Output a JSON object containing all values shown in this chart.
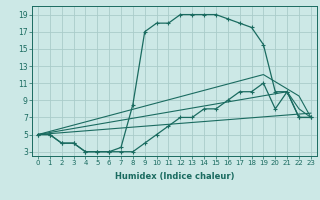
{
  "xlabel": "Humidex (Indice chaleur)",
  "bg_color": "#cce8e6",
  "grid_color": "#aaccca",
  "line_color": "#1a6b60",
  "xlim": [
    -0.5,
    23.5
  ],
  "ylim": [
    2.5,
    20.0
  ],
  "xticks": [
    0,
    1,
    2,
    3,
    4,
    5,
    6,
    7,
    8,
    9,
    10,
    11,
    12,
    13,
    14,
    15,
    16,
    17,
    18,
    19,
    20,
    21,
    22,
    23
  ],
  "yticks": [
    3,
    5,
    7,
    9,
    11,
    13,
    15,
    17,
    19
  ],
  "peak_x": [
    0,
    1,
    2,
    3,
    4,
    5,
    6,
    7,
    8,
    9,
    10,
    11,
    12,
    13,
    14,
    15,
    16,
    17,
    18,
    19,
    20,
    21,
    22,
    23
  ],
  "peak_y": [
    5,
    5,
    4,
    4,
    3,
    3,
    3,
    3.5,
    8.5,
    17,
    18,
    18,
    19,
    19,
    19,
    19,
    18.5,
    18,
    17.5,
    15.5,
    10,
    10,
    7,
    7
  ],
  "bottom_x": [
    0,
    1,
    2,
    3,
    4,
    5,
    6,
    7,
    8,
    9,
    10,
    11,
    12,
    13,
    14,
    15,
    16,
    17,
    18,
    19,
    20,
    21,
    22,
    23
  ],
  "bottom_y": [
    5,
    5,
    4,
    4,
    3,
    3,
    3,
    3,
    3,
    4,
    5,
    6,
    7,
    7,
    8,
    8,
    9,
    10,
    10,
    11,
    8,
    10,
    7,
    7
  ],
  "line3_x": [
    0,
    23
  ],
  "line3_y": [
    5,
    7.5
  ],
  "line4_x": [
    0,
    21,
    22,
    23
  ],
  "line4_y": [
    5,
    10,
    8,
    7
  ],
  "line5_x": [
    0,
    19,
    22,
    23
  ],
  "line5_y": [
    5,
    12,
    9.5,
    7
  ]
}
